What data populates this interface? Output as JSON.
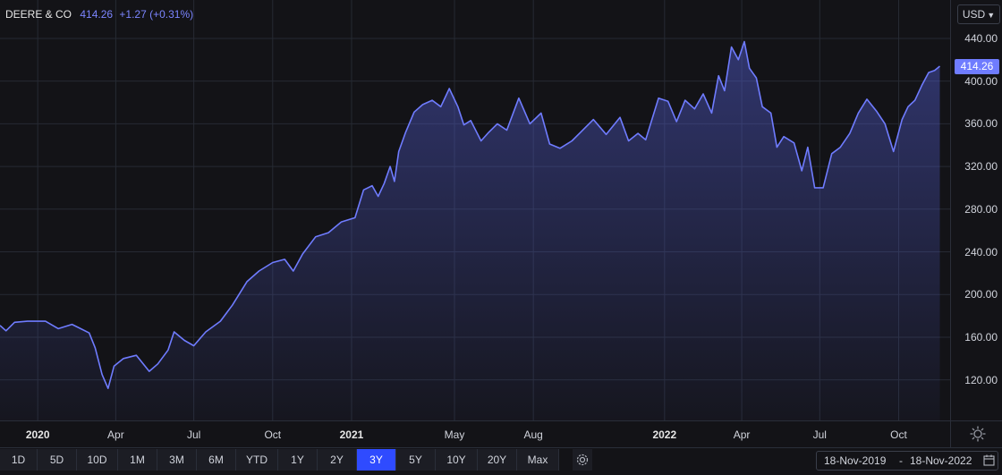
{
  "header": {
    "ticker": "DEERE & CO",
    "price": "414.26",
    "change": "+1.27 (+0.31%)"
  },
  "currency": "USD",
  "last_price_label": "414.26",
  "colors": {
    "line": "#6f7cff",
    "background": "#131317",
    "grid": "#262a33",
    "active_button": "#2f4bff"
  },
  "toolbar": {
    "ranges": [
      "1D",
      "5D",
      "10D",
      "1M",
      "3M",
      "6M",
      "YTD",
      "1Y",
      "2Y",
      "3Y",
      "5Y",
      "10Y",
      "20Y",
      "Max"
    ],
    "active": "3Y",
    "date_from": "18-Nov-2019",
    "date_sep": "-",
    "date_to": "18-Nov-2022"
  },
  "icons": {
    "settings": "gear-icon",
    "calendar": "calendar-icon",
    "chart_settings": "sun-icon"
  },
  "chart_data": {
    "type": "area",
    "title": "DEERE & CO",
    "ylabel": "",
    "ylim": [
      82,
      476
    ],
    "yticks": [
      "120.00",
      "160.00",
      "200.00",
      "240.00",
      "280.00",
      "320.00",
      "360.00",
      "400.00",
      "440.00"
    ],
    "ytick_values": [
      120,
      160,
      200,
      240,
      280,
      320,
      360,
      400,
      440
    ],
    "xticks": [
      {
        "label": "2020",
        "date": "2020-01-01",
        "year": true
      },
      {
        "label": "Apr",
        "date": "2020-04-01",
        "year": false
      },
      {
        "label": "Jul",
        "date": "2020-07-01",
        "year": false
      },
      {
        "label": "Oct",
        "date": "2020-10-01",
        "year": false
      },
      {
        "label": "2021",
        "date": "2021-01-01",
        "year": true
      },
      {
        "label": "May",
        "date": "2021-05-01",
        "year": false
      },
      {
        "label": "Aug",
        "date": "2021-08-01",
        "year": false
      },
      {
        "label": "2022",
        "date": "2022-01-01",
        "year": true
      },
      {
        "label": "Apr",
        "date": "2022-04-01",
        "year": false
      },
      {
        "label": "Jul",
        "date": "2022-07-01",
        "year": false
      },
      {
        "label": "Oct",
        "date": "2022-10-01",
        "year": false
      }
    ],
    "xlim": [
      "2019-11-18",
      "2022-11-30"
    ],
    "grid": true,
    "series": [
      {
        "name": "",
        "x": [
          "2019-11-18",
          "2019-11-25",
          "2019-12-05",
          "2019-12-20",
          "2020-01-10",
          "2020-01-25",
          "2020-02-10",
          "2020-02-20",
          "2020-03-01",
          "2020-03-08",
          "2020-03-16",
          "2020-03-23",
          "2020-03-30",
          "2020-04-10",
          "2020-04-25",
          "2020-05-10",
          "2020-05-20",
          "2020-06-01",
          "2020-06-08",
          "2020-06-20",
          "2020-07-01",
          "2020-07-15",
          "2020-08-01",
          "2020-08-15",
          "2020-09-01",
          "2020-09-15",
          "2020-10-01",
          "2020-10-15",
          "2020-10-25",
          "2020-11-05",
          "2020-11-20",
          "2020-12-05",
          "2020-12-20",
          "2021-01-05",
          "2021-01-15",
          "2021-01-25",
          "2021-02-01",
          "2021-02-08",
          "2021-02-15",
          "2021-02-20",
          "2021-02-25",
          "2021-03-05",
          "2021-03-15",
          "2021-03-25",
          "2021-04-05",
          "2021-04-15",
          "2021-04-25",
          "2021-05-05",
          "2021-05-12",
          "2021-05-20",
          "2021-06-01",
          "2021-06-10",
          "2021-06-20",
          "2021-07-01",
          "2021-07-15",
          "2021-07-28",
          "2021-08-10",
          "2021-08-20",
          "2021-09-01",
          "2021-09-15",
          "2021-09-25",
          "2021-10-10",
          "2021-10-25",
          "2021-11-10",
          "2021-11-20",
          "2021-12-01",
          "2021-12-10",
          "2021-12-25",
          "2022-01-05",
          "2022-01-15",
          "2022-01-25",
          "2022-02-05",
          "2022-02-15",
          "2022-02-25",
          "2022-03-05",
          "2022-03-12",
          "2022-03-20",
          "2022-03-28",
          "2022-04-04",
          "2022-04-10",
          "2022-04-18",
          "2022-04-25",
          "2022-05-05",
          "2022-05-12",
          "2022-05-20",
          "2022-06-01",
          "2022-06-10",
          "2022-06-17",
          "2022-06-25",
          "2022-07-05",
          "2022-07-15",
          "2022-07-25",
          "2022-08-05",
          "2022-08-15",
          "2022-08-25",
          "2022-09-05",
          "2022-09-15",
          "2022-09-25",
          "2022-10-05",
          "2022-10-12",
          "2022-10-20",
          "2022-10-28",
          "2022-11-05",
          "2022-11-12",
          "2022-11-18"
        ],
        "values": [
          171,
          166,
          174,
          175,
          175,
          168,
          172,
          168,
          164,
          150,
          125,
          112,
          133,
          140,
          143,
          128,
          135,
          148,
          165,
          157,
          152,
          165,
          175,
          190,
          212,
          222,
          230,
          233,
          222,
          238,
          254,
          258,
          268,
          272,
          298,
          302,
          292,
          304,
          320,
          306,
          334,
          352,
          371,
          378,
          382,
          376,
          393,
          376,
          359,
          363,
          344,
          352,
          360,
          354,
          384,
          360,
          370,
          341,
          337,
          344,
          352,
          364,
          350,
          366,
          344,
          351,
          345,
          384,
          381,
          362,
          382,
          374,
          388,
          370,
          405,
          391,
          432,
          420,
          437,
          412,
          403,
          376,
          370,
          338,
          348,
          342,
          316,
          338,
          300,
          300,
          332,
          338,
          351,
          370,
          383,
          372,
          360,
          334,
          364,
          376,
          382,
          396,
          408,
          410,
          414
        ]
      }
    ]
  }
}
